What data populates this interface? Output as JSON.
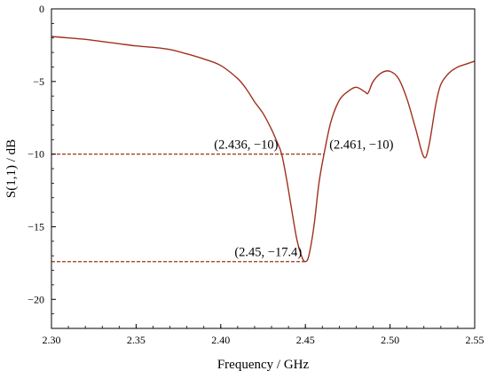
{
  "chart_data": {
    "type": "line",
    "title": "",
    "xlabel": "Frequency / GHz",
    "ylabel": "S(1,1) / dB",
    "xlim": [
      2.3,
      2.55
    ],
    "ylim": [
      -22,
      0
    ],
    "xticks": [
      {
        "value": 2.3,
        "label": "2.30"
      },
      {
        "value": 2.35,
        "label": "2.35"
      },
      {
        "value": 2.4,
        "label": "2.40"
      },
      {
        "value": 2.45,
        "label": "2.45"
      },
      {
        "value": 2.5,
        "label": "2.50"
      },
      {
        "value": 2.55,
        "label": "2.55"
      }
    ],
    "yticks": [
      {
        "value": 0,
        "label": "0"
      },
      {
        "value": -5,
        "label": "−5"
      },
      {
        "value": -10,
        "label": "−10"
      },
      {
        "value": -15,
        "label": "−15"
      },
      {
        "value": -20,
        "label": "−20"
      }
    ],
    "grid": false,
    "legend": "none",
    "series": [
      {
        "color": "#a0311e",
        "x": [
          2.3,
          2.31,
          2.32,
          2.33,
          2.34,
          2.35,
          2.36,
          2.37,
          2.38,
          2.39,
          2.4,
          2.41,
          2.415,
          2.42,
          2.425,
          2.43,
          2.433,
          2.436,
          2.439,
          2.442,
          2.445,
          2.448,
          2.45,
          2.452,
          2.455,
          2.458,
          2.461,
          2.465,
          2.47,
          2.475,
          2.48,
          2.485,
          2.487,
          2.49,
          2.495,
          2.5,
          2.505,
          2.51,
          2.515,
          2.52,
          2.523,
          2.527,
          2.53,
          2.535,
          2.54,
          2.545,
          2.55
        ],
        "y": [
          -1.9,
          -2.0,
          -2.1,
          -2.25,
          -2.4,
          -2.55,
          -2.65,
          -2.8,
          -3.1,
          -3.45,
          -3.9,
          -4.8,
          -5.5,
          -6.4,
          -7.2,
          -8.3,
          -9.1,
          -10.0,
          -11.8,
          -13.9,
          -15.9,
          -17.1,
          -17.4,
          -17.0,
          -15.0,
          -12.0,
          -10.0,
          -7.8,
          -6.3,
          -5.7,
          -5.4,
          -5.7,
          -5.8,
          -5.0,
          -4.4,
          -4.3,
          -4.8,
          -6.2,
          -8.2,
          -10.2,
          -9.4,
          -6.6,
          -5.2,
          -4.4,
          -4.0,
          -3.8,
          -3.6
        ]
      }
    ],
    "markers": [
      {
        "label": "(2.436, −10)",
        "x": 2.436,
        "y": -10,
        "anchor": "end"
      },
      {
        "label": "(2.461, −10)",
        "x": 2.461,
        "y": -10,
        "anchor": "start"
      },
      {
        "label": "(2.45, −17.4)",
        "x": 2.45,
        "y": -17.4,
        "anchor": "end"
      }
    ],
    "reference_lines": [
      {
        "y": -10,
        "x_from": 2.3,
        "x_to": 2.461,
        "color": "#a0311e",
        "style": "dashed"
      },
      {
        "y": -17.4,
        "x_from": 2.3,
        "x_to": 2.45,
        "color": "#a0311e",
        "style": "dashed"
      }
    ]
  }
}
